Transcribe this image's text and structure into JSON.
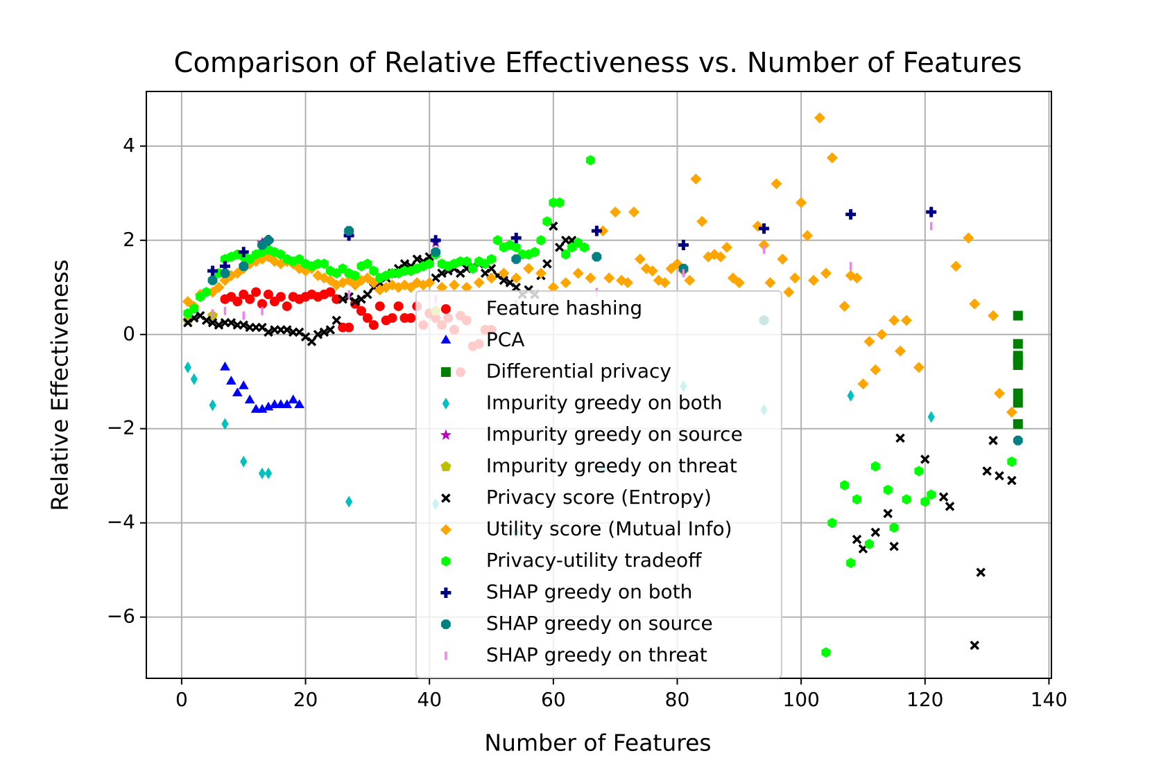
{
  "chart_data": {
    "type": "scatter",
    "title": "Comparison of Relative Effectiveness vs. Number of Features",
    "xlabel": "Number of Features",
    "ylabel": "Relative Effectiveness",
    "xlim": [
      -5.7,
      140.4
    ],
    "ylim": [
      -7.3,
      5.16
    ],
    "xticks": [
      0,
      20,
      40,
      60,
      80,
      100,
      120,
      140
    ],
    "yticks": [
      {
        "value": -6,
        "label": "−6"
      },
      {
        "value": -4,
        "label": "−4"
      },
      {
        "value": -2,
        "label": "−2"
      },
      0,
      2,
      4
    ],
    "grid": true,
    "legend": "best",
    "series": [
      {
        "name": "Feature hashing",
        "color": "#ff0000",
        "marker": "o",
        "x": [
          7,
          8,
          9,
          10,
          11,
          12,
          13,
          14,
          15,
          16,
          17,
          18,
          19,
          20,
          21,
          22,
          23,
          24,
          25,
          26,
          27,
          28,
          29,
          30,
          31,
          32,
          33,
          34,
          35,
          36,
          37,
          38,
          39,
          40,
          41,
          42,
          43,
          44,
          45,
          46,
          47,
          48,
          49,
          50,
          45
        ],
        "values": [
          0.75,
          0.8,
          0.7,
          0.85,
          0.75,
          0.9,
          0.65,
          0.85,
          0.7,
          0.8,
          0.6,
          0.8,
          0.75,
          0.8,
          0.85,
          0.8,
          0.85,
          0.9,
          0.75,
          0.15,
          0.15,
          0.65,
          0.5,
          0.35,
          0.2,
          0.6,
          0.3,
          0.35,
          0.6,
          0.35,
          0.35,
          0.6,
          0.2,
          0.45,
          0.35,
          0.2,
          0.35,
          0.1,
          0.4,
          0.3,
          -0.25,
          -0.2,
          0.1,
          0.1,
          -0.8
        ]
      },
      {
        "name": "PCA",
        "color": "#0000ff",
        "marker": "^",
        "x": [
          7,
          8,
          9,
          10,
          11,
          12,
          13,
          14,
          15,
          16,
          17,
          18,
          19
        ],
        "values": [
          -0.7,
          -1.0,
          -1.25,
          -1.1,
          -1.4,
          -1.6,
          -1.6,
          -1.55,
          -1.5,
          -1.5,
          -1.5,
          -1.4,
          -1.5
        ]
      },
      {
        "name": "Differential privacy",
        "color": "#008000",
        "marker": "s",
        "x": [
          135,
          135,
          135,
          135,
          135,
          135,
          135,
          135
        ],
        "values": [
          0.4,
          -0.2,
          -0.45,
          -0.55,
          -0.65,
          -1.25,
          -1.45,
          -1.9
        ]
      },
      {
        "name": "Impurity greedy on both",
        "color": "#00bfbf",
        "marker": "d",
        "x": [
          1,
          2,
          5,
          7,
          10,
          13,
          14,
          27,
          41,
          54,
          68,
          81,
          94,
          108,
          121
        ],
        "values": [
          -0.7,
          -0.95,
          -1.5,
          -1.9,
          -2.7,
          -2.95,
          -2.95,
          -3.55,
          -3.6,
          -4.2,
          -2.85,
          -1.1,
          -1.6,
          -1.3,
          -1.75
        ]
      },
      {
        "name": "Impurity greedy on source",
        "color": "#bf00bf",
        "marker": "*",
        "x": [
          13,
          27,
          41
        ],
        "values": [
          1.95,
          2.15,
          1.95
        ]
      },
      {
        "name": "Impurity greedy on threat",
        "color": "#bfbf00",
        "marker": "p",
        "x": [
          1,
          5,
          41
        ],
        "values": [
          0.3,
          0.4,
          0.5
        ]
      },
      {
        "name": "Privacy score (Entropy)",
        "color": "#000000",
        "marker": "x",
        "x": [
          1,
          2,
          3,
          4,
          5,
          6,
          7,
          8,
          9,
          10,
          11,
          12,
          13,
          14,
          15,
          16,
          17,
          18,
          19,
          20,
          21,
          22,
          23,
          24,
          25,
          26,
          27,
          28,
          29,
          30,
          31,
          32,
          33,
          34,
          35,
          36,
          37,
          38,
          39,
          40,
          41,
          42,
          43,
          44,
          45,
          46,
          47,
          48,
          49,
          50,
          51,
          52,
          53,
          54,
          55,
          56,
          57,
          58,
          59,
          60,
          61,
          62,
          63,
          109,
          110,
          112,
          114,
          115,
          116,
          120,
          123,
          124,
          128,
          129,
          130,
          131,
          132,
          134
        ],
        "values": [
          0.25,
          0.35,
          0.4,
          0.3,
          0.25,
          0.2,
          0.25,
          0.25,
          0.2,
          0.2,
          0.15,
          0.15,
          0.15,
          0.05,
          0.1,
          0.1,
          0.1,
          0.05,
          0.05,
          -0.05,
          -0.15,
          0.0,
          0.05,
          0.1,
          0.3,
          0.75,
          0.8,
          0.7,
          0.75,
          0.85,
          1.0,
          1.1,
          1.2,
          1.3,
          1.4,
          1.5,
          1.45,
          1.6,
          1.55,
          1.65,
          1.2,
          1.3,
          1.35,
          1.4,
          1.3,
          1.4,
          1.45,
          1.5,
          1.3,
          1.4,
          1.25,
          1.15,
          1.1,
          1.0,
          0.85,
          0.95,
          0.85,
          1.25,
          1.5,
          2.3,
          1.85,
          2.0,
          2.0,
          -4.35,
          -4.55,
          -4.2,
          -3.8,
          -4.5,
          -2.2,
          -2.65,
          -3.45,
          -3.65,
          -6.6,
          -5.05,
          -2.9,
          -2.25,
          -3.0,
          -3.1
        ]
      },
      {
        "name": "Utility score (Mutual Info)",
        "color": "#ffa500",
        "marker": "D",
        "x": [
          1,
          2,
          3,
          5,
          6,
          7,
          8,
          9,
          10,
          11,
          12,
          13,
          14,
          15,
          16,
          17,
          18,
          19,
          20,
          21,
          22,
          23,
          24,
          25,
          26,
          27,
          28,
          29,
          30,
          31,
          32,
          33,
          34,
          35,
          36,
          37,
          38,
          39,
          40,
          42,
          44,
          46,
          48,
          50,
          52,
          54,
          56,
          58,
          60,
          62,
          64,
          66,
          68,
          69,
          70,
          71,
          72,
          73,
          74,
          75,
          76,
          77,
          78,
          79,
          80,
          81,
          82,
          83,
          84,
          85,
          86,
          87,
          88,
          89,
          90,
          93,
          94,
          95,
          96,
          97,
          98,
          99,
          100,
          101,
          102,
          103,
          104,
          105,
          107,
          108,
          109,
          110,
          111,
          112,
          113,
          115,
          116,
          117,
          119,
          125,
          127,
          128,
          131,
          132,
          134
        ],
        "values": [
          0.7,
          0.6,
          0.85,
          0.9,
          1.0,
          1.15,
          1.25,
          1.3,
          1.4,
          1.5,
          1.55,
          1.6,
          1.65,
          1.55,
          1.5,
          1.55,
          1.5,
          1.4,
          1.35,
          1.4,
          1.25,
          1.2,
          1.15,
          1.05,
          1.1,
          1.15,
          1.05,
          1.15,
          1.2,
          1.1,
          0.95,
          1.0,
          1.05,
          1.0,
          1.05,
          1.0,
          1.1,
          1.05,
          1.1,
          1.0,
          1.05,
          1.0,
          1.1,
          1.2,
          1.3,
          1.2,
          1.4,
          1.3,
          1.0,
          1.1,
          1.3,
          1.2,
          2.2,
          1.2,
          2.6,
          1.15,
          1.1,
          2.6,
          1.6,
          1.4,
          1.35,
          1.15,
          1.1,
          1.4,
          1.5,
          1.35,
          1.15,
          3.3,
          2.4,
          1.65,
          1.7,
          1.65,
          1.85,
          1.2,
          1.1,
          2.3,
          1.9,
          1.1,
          3.2,
          1.6,
          0.9,
          1.2,
          2.8,
          2.1,
          1.15,
          4.6,
          1.3,
          3.75,
          0.6,
          1.25,
          1.2,
          -1.05,
          -0.15,
          -0.75,
          0.0,
          0.3,
          -0.35,
          0.3,
          -0.7,
          1.45,
          2.05,
          0.65,
          0.4,
          -1.25,
          -1.65
        ]
      },
      {
        "name": "Privacy-utility tradeoff",
        "color": "#00ff00",
        "marker": "h",
        "x": [
          1,
          2,
          3,
          4,
          5,
          6,
          7,
          8,
          9,
          10,
          11,
          12,
          13,
          14,
          15,
          16,
          17,
          18,
          19,
          20,
          21,
          22,
          23,
          24,
          25,
          26,
          27,
          28,
          29,
          30,
          31,
          32,
          33,
          34,
          35,
          36,
          37,
          38,
          39,
          40,
          41,
          42,
          43,
          44,
          45,
          46,
          47,
          48,
          49,
          50,
          51,
          52,
          53,
          54,
          55,
          56,
          57,
          58,
          59,
          60,
          61,
          62,
          63,
          64,
          65,
          66,
          104,
          105,
          107,
          108,
          109,
          111,
          112,
          114,
          115,
          117,
          119,
          120,
          121,
          134
        ],
        "values": [
          0.45,
          0.55,
          0.8,
          0.9,
          1.15,
          1.3,
          1.6,
          1.65,
          1.7,
          1.65,
          1.6,
          1.7,
          1.75,
          1.8,
          1.75,
          1.7,
          1.6,
          1.55,
          1.6,
          1.5,
          1.45,
          1.5,
          1.5,
          1.35,
          1.3,
          1.4,
          1.3,
          1.25,
          1.45,
          1.5,
          1.35,
          1.2,
          1.25,
          1.3,
          1.3,
          1.35,
          1.35,
          1.4,
          1.45,
          1.5,
          1.7,
          1.5,
          1.45,
          1.5,
          1.55,
          1.55,
          1.4,
          1.55,
          1.5,
          1.6,
          2.0,
          1.85,
          1.9,
          1.85,
          1.7,
          1.7,
          1.75,
          2.0,
          2.4,
          2.8,
          2.8,
          1.7,
          1.85,
          1.95,
          1.85,
          3.7,
          -6.75,
          -4.0,
          -3.2,
          -4.85,
          -3.5,
          -4.45,
          -2.8,
          -3.3,
          -4.1,
          -3.5,
          -2.9,
          -3.55,
          -3.4,
          -2.7
        ]
      },
      {
        "name": "SHAP greedy on both",
        "color": "#000080",
        "marker": "P",
        "x": [
          5,
          7,
          10,
          14,
          27,
          41,
          54,
          67,
          81,
          94,
          108,
          121
        ],
        "values": [
          1.35,
          1.45,
          1.75,
          2.0,
          2.1,
          2.0,
          2.05,
          2.2,
          1.9,
          2.25,
          2.55,
          2.6
        ]
      },
      {
        "name": "SHAP greedy on source",
        "color": "#008080",
        "marker": "8",
        "x": [
          5,
          7,
          10,
          13,
          14,
          27,
          41,
          54,
          67,
          81,
          94,
          135
        ],
        "values": [
          1.15,
          1.3,
          1.45,
          1.9,
          2.0,
          2.2,
          1.75,
          1.6,
          1.65,
          1.4,
          0.3,
          -2.25
        ]
      },
      {
        "name": "SHAP greedy on threat",
        "color": "#ee82ee",
        "marker": "|",
        "x": [
          5,
          7,
          10,
          13,
          27,
          41,
          54,
          67,
          81,
          94,
          108,
          121
        ],
        "values": [
          0.45,
          0.5,
          0.4,
          0.5,
          0.85,
          0.75,
          0.65,
          0.9,
          1.3,
          1.8,
          1.45,
          2.3
        ]
      }
    ]
  }
}
